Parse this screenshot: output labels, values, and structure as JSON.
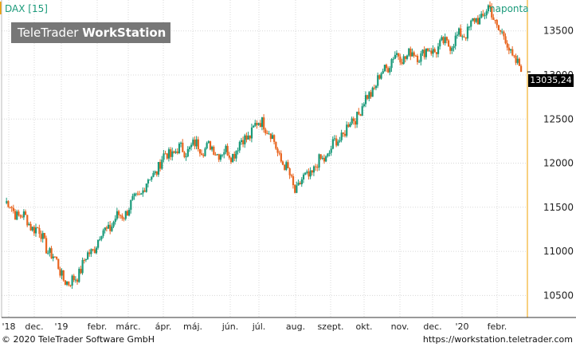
{
  "header": {
    "symbol": "DAX [15]",
    "interval": "naponta",
    "brand_prefix": "TeleTrader ",
    "brand_bold": "WorkStation"
  },
  "last_price_label": "13035,24",
  "footer": {
    "copyright": "© 2020 TeleTrader Software GmbH",
    "url": "https://workstation.teletrader.com"
  },
  "colors": {
    "up": "#1a9a7a",
    "down": "#e8641e",
    "grid": "#d8d8d8",
    "axis": "#f0a000",
    "last_price_bg": "#000000",
    "brand_bg": "#777777"
  },
  "chart_data": {
    "type": "candlestick",
    "title": "DAX [15]",
    "interval": "naponta",
    "ylim": [
      10250,
      13850
    ],
    "y_ticks": [
      "10500",
      "11000",
      "11500",
      "12000",
      "12500",
      "13000",
      "13500"
    ],
    "x_ticks": [
      "'18",
      "dec.",
      "'19",
      "febr.",
      "márc.",
      "ápr.",
      "máj.",
      "jún.",
      "júl.",
      "aug.",
      "szept.",
      "okt.",
      "nov.",
      "dec.",
      "'20",
      "febr."
    ],
    "grid": true,
    "last_value": 13035.24,
    "series": [
      {
        "name": "DAX",
        "x": [
          "2018-11",
          "2018-12",
          "2019-01",
          "2019-02",
          "2019-03",
          "2019-04",
          "2019-05",
          "2019-06",
          "2019-07",
          "2019-08",
          "2019-09",
          "2019-10",
          "2019-11",
          "2019-12",
          "2020-01",
          "2020-02",
          "2020-02-end"
        ],
        "values": [
          11550,
          11250,
          10600,
          11200,
          11550,
          12100,
          12200,
          12100,
          12500,
          11700,
          12100,
          12600,
          13200,
          13250,
          13400,
          13750,
          13035
        ]
      }
    ]
  }
}
